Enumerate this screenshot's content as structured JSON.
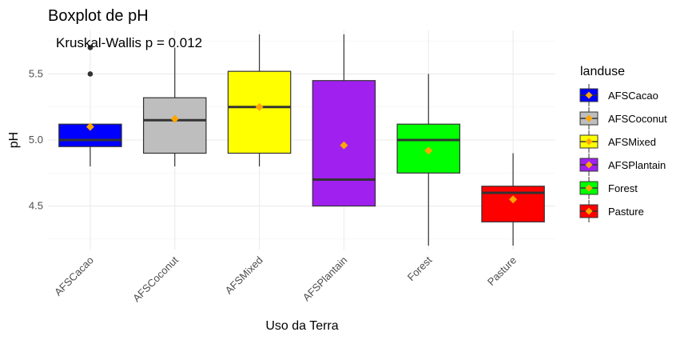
{
  "chart_data": {
    "type": "boxplot",
    "title": "Boxplot de pH",
    "annotation": "Kruskal-Wallis p = 0.012",
    "xlabel": "Uso da Terra",
    "ylabel": "pH",
    "ylim": [
      4.17,
      5.83
    ],
    "yticks": [
      4.5,
      5.0,
      5.5
    ],
    "ytick_labels": [
      "4.5",
      "5.0",
      "5.5"
    ],
    "grid": true,
    "legend": {
      "title": "landuse",
      "position": "right"
    },
    "categories": [
      "AFSCacao",
      "AFSCoconut",
      "AFSMixed",
      "AFSPlantain",
      "Forest",
      "Pasture"
    ],
    "boxes": [
      {
        "category": "AFSCacao",
        "min": 4.8,
        "q1": 4.95,
        "median": 5.0,
        "q3": 5.12,
        "max": 5.12,
        "mean": 5.1,
        "outliers": [
          5.5,
          5.7
        ],
        "color": "#0000ff"
      },
      {
        "category": "AFSCoconut",
        "min": 4.8,
        "q1": 4.9,
        "median": 5.15,
        "q3": 5.32,
        "max": 5.7,
        "mean": 5.16,
        "outliers": [],
        "color": "#bebebe"
      },
      {
        "category": "AFSMixed",
        "min": 4.8,
        "q1": 4.9,
        "median": 5.25,
        "q3": 5.52,
        "max": 5.8,
        "mean": 5.25,
        "outliers": [],
        "color": "#ffff00"
      },
      {
        "category": "AFSPlantain",
        "min": 4.5,
        "q1": 4.5,
        "median": 4.7,
        "q3": 5.45,
        "max": 5.8,
        "mean": 4.96,
        "outliers": [],
        "color": "#a020f0"
      },
      {
        "category": "Forest",
        "min": 4.2,
        "q1": 4.75,
        "median": 5.0,
        "q3": 5.12,
        "max": 5.5,
        "mean": 4.92,
        "outliers": [],
        "color": "#00ff00"
      },
      {
        "category": "Pasture",
        "min": 4.2,
        "q1": 4.38,
        "median": 4.6,
        "q3": 4.65,
        "max": 4.9,
        "mean": 4.55,
        "outliers": [],
        "color": "#ff0000"
      }
    ],
    "mean_marker_color": "#ffa500"
  }
}
